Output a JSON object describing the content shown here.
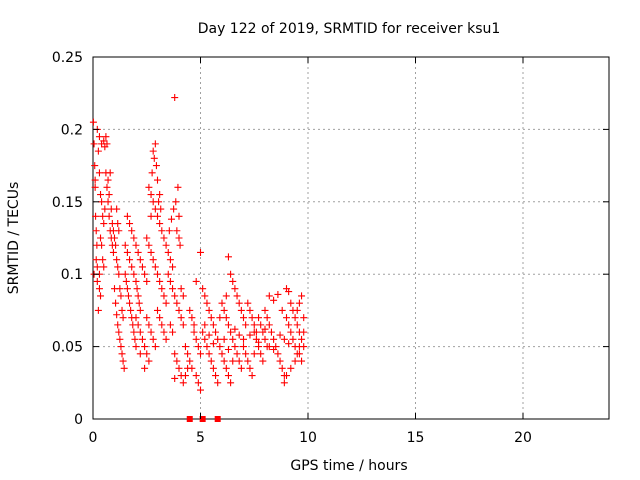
{
  "chart_data": {
    "type": "scatter",
    "title": "Day 122 of 2019, SRMTID for receiver ksu1",
    "xlabel": "GPS time / hours",
    "ylabel": "SRMTID / TECUs",
    "xlim": [
      0,
      24
    ],
    "ylim": [
      0,
      0.25
    ],
    "xticks": [
      0,
      5,
      10,
      15,
      20
    ],
    "xtick_labels": [
      "0",
      "5",
      "10",
      "15",
      "20"
    ],
    "yticks": [
      0,
      0.05,
      0.1,
      0.15,
      0.2,
      0.25
    ],
    "ytick_labels": [
      "0",
      "0.05",
      "0.1",
      "0.15",
      "0.2",
      "0.25"
    ],
    "grid": true,
    "marker": "+",
    "color": "#ff0000",
    "series": [
      {
        "name": "SRMTID",
        "points": [
          [
            0.02,
            0.205
          ],
          [
            0.05,
            0.19
          ],
          [
            0.08,
            0.175
          ],
          [
            0.1,
            0.165
          ],
          [
            0.12,
            0.14
          ],
          [
            0.15,
            0.13
          ],
          [
            0.18,
            0.12
          ],
          [
            0.2,
            0.105
          ],
          [
            0.05,
            0.1
          ],
          [
            0.1,
            0.16
          ],
          [
            0.2,
            0.2
          ],
          [
            0.25,
            0.185
          ],
          [
            0.3,
            0.17
          ],
          [
            0.35,
            0.155
          ],
          [
            0.4,
            0.15
          ],
          [
            0.45,
            0.14
          ],
          [
            0.5,
            0.135
          ],
          [
            0.55,
            0.145
          ],
          [
            0.6,
            0.195
          ],
          [
            0.65,
            0.19
          ],
          [
            0.3,
            0.195
          ],
          [
            0.4,
            0.19
          ],
          [
            0.5,
            0.192
          ],
          [
            0.55,
            0.188
          ],
          [
            0.7,
            0.15
          ],
          [
            0.75,
            0.14
          ],
          [
            0.8,
            0.13
          ],
          [
            0.85,
            0.125
          ],
          [
            0.9,
            0.12
          ],
          [
            0.95,
            0.115
          ],
          [
            0.35,
            0.125
          ],
          [
            0.4,
            0.12
          ],
          [
            0.45,
            0.11
          ],
          [
            0.5,
            0.105
          ],
          [
            0.3,
            0.09
          ],
          [
            0.35,
            0.085
          ],
          [
            0.25,
            0.075
          ],
          [
            0.3,
            0.1
          ],
          [
            0.2,
            0.095
          ],
          [
            0.15,
            0.11
          ],
          [
            0.6,
            0.17
          ],
          [
            0.65,
            0.16
          ],
          [
            0.7,
            0.165
          ],
          [
            0.75,
            0.155
          ],
          [
            0.8,
            0.17
          ],
          [
            0.85,
            0.145
          ],
          [
            0.9,
            0.135
          ],
          [
            0.95,
            0.13
          ],
          [
            1.0,
            0.125
          ],
          [
            1.05,
            0.12
          ],
          [
            1.1,
            0.11
          ],
          [
            1.15,
            0.105
          ],
          [
            1.2,
            0.1
          ],
          [
            1.1,
            0.145
          ],
          [
            1.15,
            0.135
          ],
          [
            1.2,
            0.13
          ],
          [
            1.25,
            0.09
          ],
          [
            1.3,
            0.085
          ],
          [
            1.35,
            0.075
          ],
          [
            1.4,
            0.07
          ],
          [
            1.0,
            0.09
          ],
          [
            1.05,
            0.08
          ],
          [
            1.1,
            0.072
          ],
          [
            1.15,
            0.065
          ],
          [
            1.2,
            0.06
          ],
          [
            1.25,
            0.055
          ],
          [
            1.3,
            0.05
          ],
          [
            1.35,
            0.045
          ],
          [
            1.4,
            0.04
          ],
          [
            1.45,
            0.035
          ],
          [
            1.5,
            0.1
          ],
          [
            1.55,
            0.095
          ],
          [
            1.6,
            0.09
          ],
          [
            1.65,
            0.085
          ],
          [
            1.7,
            0.08
          ],
          [
            1.75,
            0.075
          ],
          [
            1.8,
            0.07
          ],
          [
            1.85,
            0.065
          ],
          [
            1.9,
            0.06
          ],
          [
            1.95,
            0.055
          ],
          [
            1.5,
            0.12
          ],
          [
            1.6,
            0.115
          ],
          [
            1.7,
            0.11
          ],
          [
            1.8,
            0.105
          ],
          [
            1.9,
            0.1
          ],
          [
            2.0,
            0.095
          ],
          [
            2.05,
            0.09
          ],
          [
            2.1,
            0.085
          ],
          [
            2.15,
            0.08
          ],
          [
            2.2,
            0.075
          ],
          [
            1.6,
            0.14
          ],
          [
            1.7,
            0.135
          ],
          [
            1.8,
            0.13
          ],
          [
            1.9,
            0.125
          ],
          [
            2.0,
            0.12
          ],
          [
            2.1,
            0.115
          ],
          [
            2.2,
            0.11
          ],
          [
            2.3,
            0.105
          ],
          [
            2.4,
            0.1
          ],
          [
            2.5,
            0.095
          ],
          [
            2.0,
            0.07
          ],
          [
            2.1,
            0.065
          ],
          [
            2.2,
            0.06
          ],
          [
            2.3,
            0.055
          ],
          [
            2.4,
            0.05
          ],
          [
            2.5,
            0.045
          ],
          [
            2.6,
            0.04
          ],
          [
            2.0,
            0.05
          ],
          [
            2.2,
            0.045
          ],
          [
            2.4,
            0.035
          ],
          [
            2.5,
            0.125
          ],
          [
            2.6,
            0.12
          ],
          [
            2.7,
            0.115
          ],
          [
            2.8,
            0.11
          ],
          [
            2.9,
            0.105
          ],
          [
            3.0,
            0.1
          ],
          [
            3.1,
            0.095
          ],
          [
            3.2,
            0.09
          ],
          [
            3.3,
            0.085
          ],
          [
            3.4,
            0.08
          ],
          [
            2.6,
            0.16
          ],
          [
            2.7,
            0.155
          ],
          [
            2.8,
            0.15
          ],
          [
            2.9,
            0.145
          ],
          [
            3.0,
            0.14
          ],
          [
            3.1,
            0.135
          ],
          [
            3.2,
            0.13
          ],
          [
            3.3,
            0.125
          ],
          [
            3.4,
            0.12
          ],
          [
            3.5,
            0.115
          ],
          [
            2.9,
            0.19
          ],
          [
            2.95,
            0.175
          ],
          [
            3.0,
            0.165
          ],
          [
            2.85,
            0.18
          ],
          [
            3.05,
            0.15
          ],
          [
            3.1,
            0.155
          ],
          [
            3.15,
            0.145
          ],
          [
            2.8,
            0.185
          ],
          [
            2.75,
            0.17
          ],
          [
            2.7,
            0.14
          ],
          [
            2.5,
            0.07
          ],
          [
            2.6,
            0.065
          ],
          [
            2.7,
            0.06
          ],
          [
            2.8,
            0.055
          ],
          [
            2.9,
            0.05
          ],
          [
            3.0,
            0.075
          ],
          [
            3.1,
            0.07
          ],
          [
            3.2,
            0.065
          ],
          [
            3.3,
            0.06
          ],
          [
            3.4,
            0.055
          ],
          [
            3.5,
            0.1
          ],
          [
            3.6,
            0.095
          ],
          [
            3.7,
            0.09
          ],
          [
            3.8,
            0.085
          ],
          [
            3.9,
            0.08
          ],
          [
            4.0,
            0.075
          ],
          [
            4.1,
            0.07
          ],
          [
            4.2,
            0.065
          ],
          [
            3.6,
            0.11
          ],
          [
            3.7,
            0.105
          ],
          [
            3.8,
            0.222
          ],
          [
            3.9,
            0.13
          ],
          [
            4.0,
            0.125
          ],
          [
            4.05,
            0.12
          ],
          [
            3.95,
            0.16
          ],
          [
            4.0,
            0.14
          ],
          [
            3.85,
            0.15
          ],
          [
            3.75,
            0.145
          ],
          [
            3.65,
            0.138
          ],
          [
            3.55,
            0.13
          ],
          [
            3.6,
            0.065
          ],
          [
            3.7,
            0.06
          ],
          [
            3.8,
            0.045
          ],
          [
            3.9,
            0.04
          ],
          [
            4.0,
            0.035
          ],
          [
            4.1,
            0.03
          ],
          [
            3.8,
            0.028
          ],
          [
            4.2,
            0.025
          ],
          [
            4.3,
            0.03
          ],
          [
            4.4,
            0.035
          ],
          [
            4.1,
            0.09
          ],
          [
            4.2,
            0.085
          ],
          [
            4.3,
            0.05
          ],
          [
            4.4,
            0.045
          ],
          [
            4.5,
            0.04
          ],
          [
            4.6,
            0.035
          ],
          [
            4.7,
            0.06
          ],
          [
            4.8,
            0.055
          ],
          [
            4.9,
            0.05
          ],
          [
            5.0,
            0.045
          ],
          [
            4.5,
            0.075
          ],
          [
            4.6,
            0.07
          ],
          [
            4.7,
            0.065
          ],
          [
            4.8,
            0.03
          ],
          [
            4.9,
            0.025
          ],
          [
            5.0,
            0.02
          ],
          [
            5.1,
            0.06
          ],
          [
            5.2,
            0.055
          ],
          [
            5.3,
            0.05
          ],
          [
            5.4,
            0.045
          ],
          [
            4.8,
            0.095
          ],
          [
            5.0,
            0.115
          ],
          [
            5.1,
            0.09
          ],
          [
            5.2,
            0.085
          ],
          [
            5.3,
            0.08
          ],
          [
            5.4,
            0.075
          ],
          [
            5.5,
            0.04
          ],
          [
            5.6,
            0.035
          ],
          [
            5.7,
            0.03
          ],
          [
            5.8,
            0.025
          ],
          [
            5.5,
            0.07
          ],
          [
            5.6,
            0.065
          ],
          [
            5.7,
            0.06
          ],
          [
            5.8,
            0.055
          ],
          [
            5.9,
            0.05
          ],
          [
            6.0,
            0.045
          ],
          [
            6.1,
            0.04
          ],
          [
            6.2,
            0.035
          ],
          [
            6.3,
            0.03
          ],
          [
            6.4,
            0.025
          ],
          [
            6.0,
            0.08
          ],
          [
            6.1,
            0.075
          ],
          [
            6.2,
            0.07
          ],
          [
            6.3,
            0.065
          ],
          [
            6.4,
            0.06
          ],
          [
            6.5,
            0.055
          ],
          [
            6.6,
            0.05
          ],
          [
            6.7,
            0.045
          ],
          [
            6.8,
            0.04
          ],
          [
            6.9,
            0.035
          ],
          [
            6.3,
            0.112
          ],
          [
            6.4,
            0.1
          ],
          [
            6.5,
            0.095
          ],
          [
            6.6,
            0.09
          ],
          [
            6.2,
            0.085
          ],
          [
            6.7,
            0.085
          ],
          [
            6.8,
            0.08
          ],
          [
            6.9,
            0.075
          ],
          [
            7.0,
            0.07
          ],
          [
            7.1,
            0.065
          ],
          [
            7.0,
            0.05
          ],
          [
            7.1,
            0.045
          ],
          [
            7.2,
            0.04
          ],
          [
            7.3,
            0.035
          ],
          [
            7.4,
            0.03
          ],
          [
            7.5,
            0.06
          ],
          [
            7.6,
            0.055
          ],
          [
            7.7,
            0.05
          ],
          [
            7.8,
            0.045
          ],
          [
            7.9,
            0.04
          ],
          [
            7.2,
            0.08
          ],
          [
            7.3,
            0.075
          ],
          [
            7.4,
            0.07
          ],
          [
            7.5,
            0.065
          ],
          [
            7.6,
            0.06
          ],
          [
            7.7,
            0.07
          ],
          [
            7.8,
            0.065
          ],
          [
            7.9,
            0.06
          ],
          [
            8.0,
            0.055
          ],
          [
            8.1,
            0.05
          ],
          [
            8.0,
            0.075
          ],
          [
            8.1,
            0.07
          ],
          [
            8.2,
            0.065
          ],
          [
            8.3,
            0.06
          ],
          [
            8.4,
            0.055
          ],
          [
            8.5,
            0.05
          ],
          [
            8.6,
            0.045
          ],
          [
            8.7,
            0.04
          ],
          [
            8.8,
            0.035
          ],
          [
            8.9,
            0.03
          ],
          [
            8.2,
            0.085
          ],
          [
            8.4,
            0.082
          ],
          [
            8.6,
            0.086
          ],
          [
            8.8,
            0.075
          ],
          [
            9.0,
            0.07
          ],
          [
            9.1,
            0.065
          ],
          [
            9.2,
            0.06
          ],
          [
            9.3,
            0.055
          ],
          [
            9.4,
            0.05
          ],
          [
            9.5,
            0.045
          ],
          [
            9.0,
            0.09
          ],
          [
            9.1,
            0.088
          ],
          [
            9.2,
            0.08
          ],
          [
            9.3,
            0.075
          ],
          [
            9.4,
            0.07
          ],
          [
            9.5,
            0.065
          ],
          [
            9.6,
            0.06
          ],
          [
            9.7,
            0.055
          ],
          [
            9.8,
            0.05
          ],
          [
            9.7,
            0.085
          ],
          [
            8.9,
            0.025
          ],
          [
            9.0,
            0.03
          ],
          [
            9.2,
            0.035
          ],
          [
            9.4,
            0.04
          ],
          [
            9.6,
            0.045
          ],
          [
            9.7,
            0.04
          ],
          [
            9.8,
            0.06
          ],
          [
            9.8,
            0.07
          ],
          [
            9.6,
            0.08
          ],
          [
            9.5,
            0.075
          ],
          [
            5.2,
            0.065
          ],
          [
            5.9,
            0.07
          ],
          [
            6.6,
            0.062
          ],
          [
            7.3,
            0.058
          ],
          [
            8.0,
            0.062
          ],
          [
            8.7,
            0.058
          ],
          [
            5.6,
            0.052
          ],
          [
            6.3,
            0.048
          ],
          [
            7.0,
            0.055
          ],
          [
            7.7,
            0.053
          ],
          [
            8.4,
            0.048
          ],
          [
            9.1,
            0.052
          ],
          [
            5.4,
            0.058
          ],
          [
            6.1,
            0.055
          ],
          [
            6.8,
            0.058
          ],
          [
            7.5,
            0.045
          ],
          [
            8.2,
            0.05
          ],
          [
            8.9,
            0.055
          ],
          [
            9.6,
            0.05
          ],
          [
            6.5,
            0.04
          ]
        ]
      }
    ],
    "zero_markers_x": [
      4.5,
      5.1,
      5.8
    ]
  }
}
